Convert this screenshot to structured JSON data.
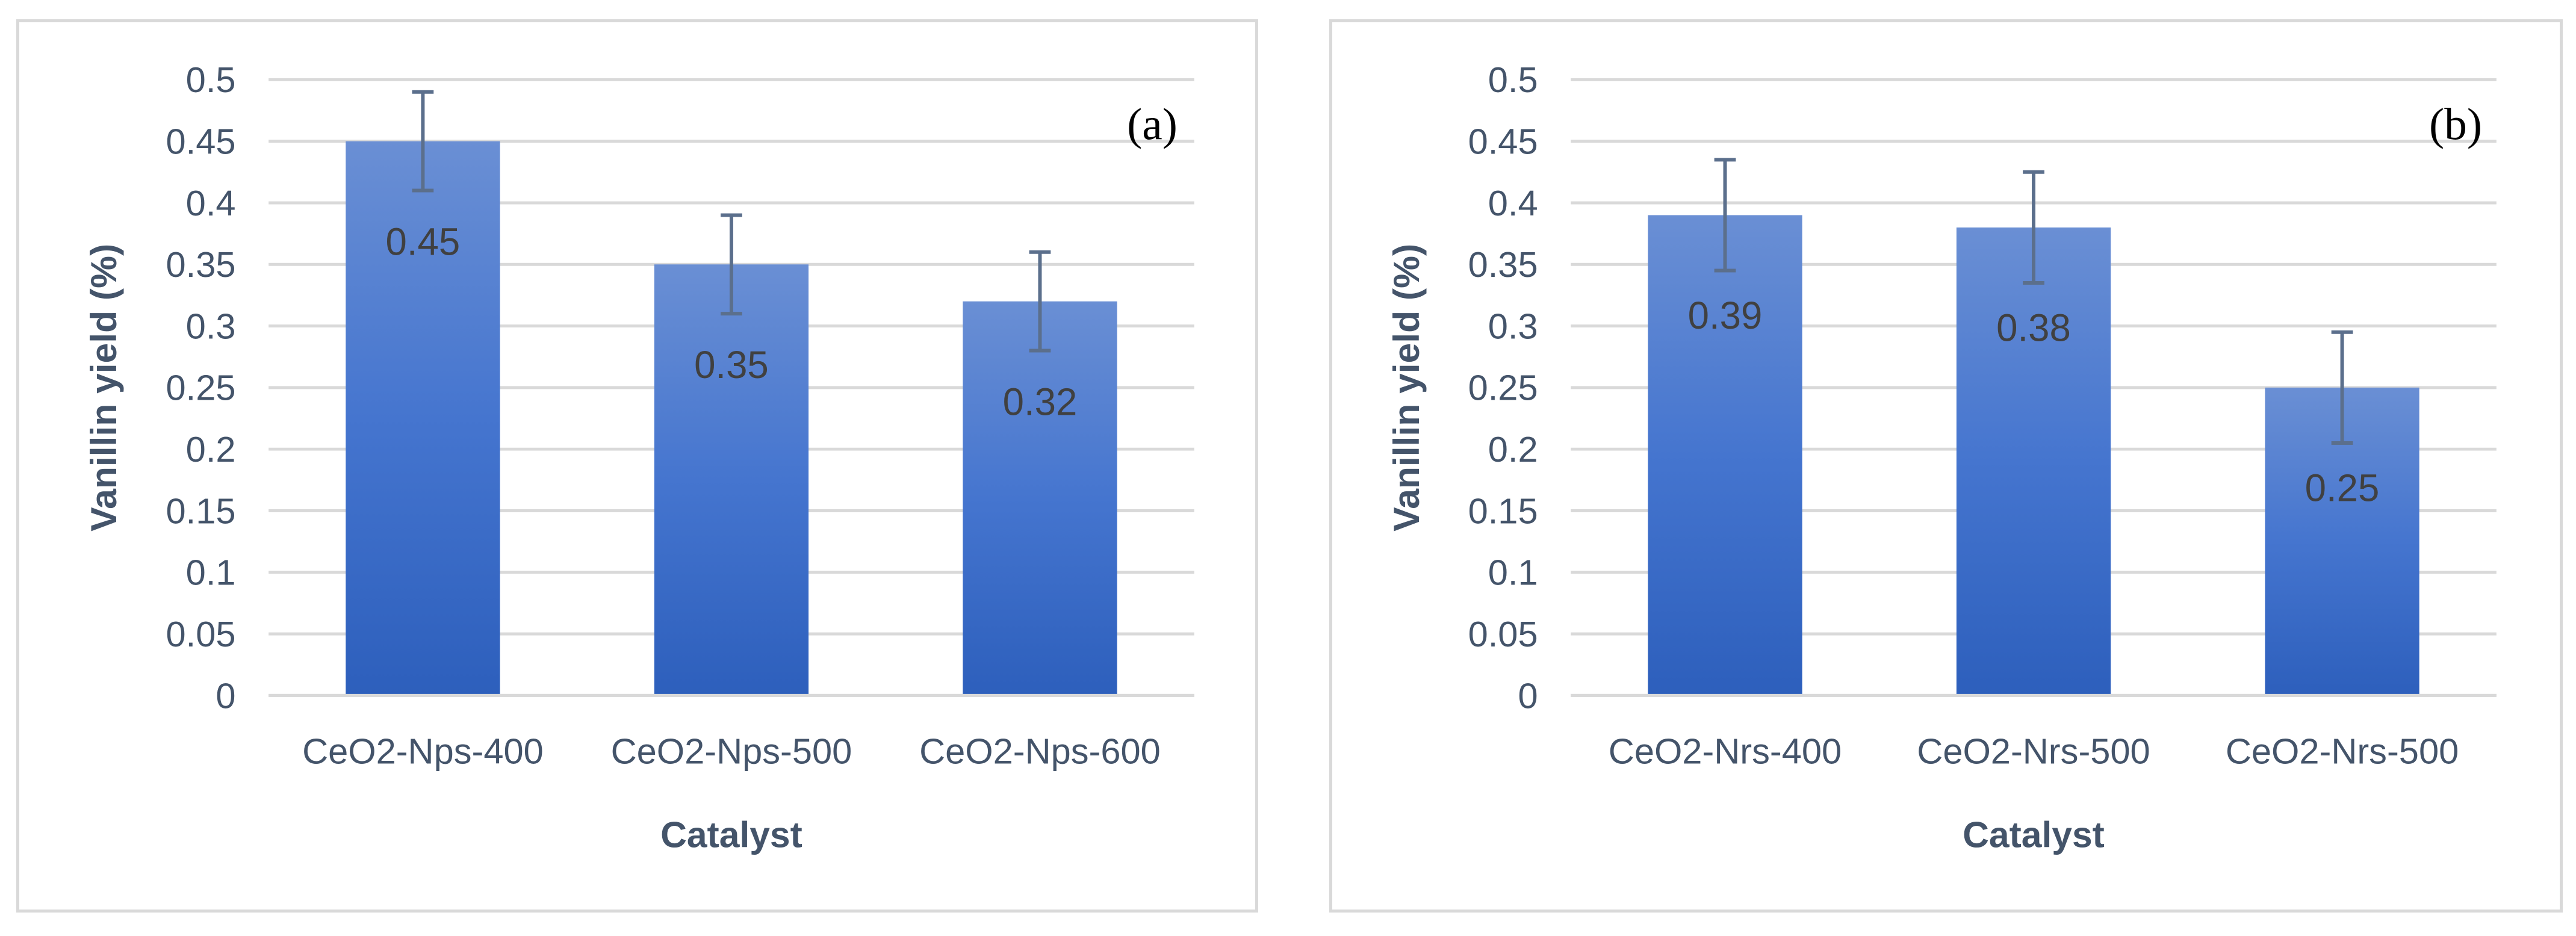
{
  "chart_data": [
    {
      "type": "bar",
      "panel_label": "(a)",
      "categories": [
        "CeO2-Nps-400",
        "CeO2-Nps-500",
        "CeO2-Nps-600"
      ],
      "values": [
        0.45,
        0.35,
        0.32
      ],
      "data_labels": [
        "0.45",
        "0.35",
        "0.32"
      ],
      "error": [
        0.04,
        0.04,
        0.04
      ],
      "xlabel": "Catalyst",
      "ylabel": "Vanillin yield (%)",
      "ylim": [
        0,
        0.5
      ],
      "yticks": [
        "0",
        "0.05",
        "0.1",
        "0.15",
        "0.2",
        "0.25",
        "0.3",
        "0.35",
        "0.4",
        "0.45",
        "0.5"
      ],
      "grid": true,
      "bar_color": "#4472c4"
    },
    {
      "type": "bar",
      "panel_label": "(b)",
      "categories": [
        "CeO2-Nrs-400",
        "CeO2-Nrs-500",
        "CeO2-Nrs-500"
      ],
      "values": [
        0.39,
        0.38,
        0.25
      ],
      "data_labels": [
        "0.39",
        "0.38",
        "0.25"
      ],
      "error": [
        0.045,
        0.045,
        0.045
      ],
      "xlabel": "Catalyst",
      "ylabel": "Vanillin yield (%)",
      "ylim": [
        0,
        0.5
      ],
      "yticks": [
        "0",
        "0.05",
        "0.1",
        "0.15",
        "0.2",
        "0.25",
        "0.3",
        "0.35",
        "0.4",
        "0.45",
        "0.5"
      ],
      "grid": true,
      "bar_color": "#4472c4"
    }
  ]
}
